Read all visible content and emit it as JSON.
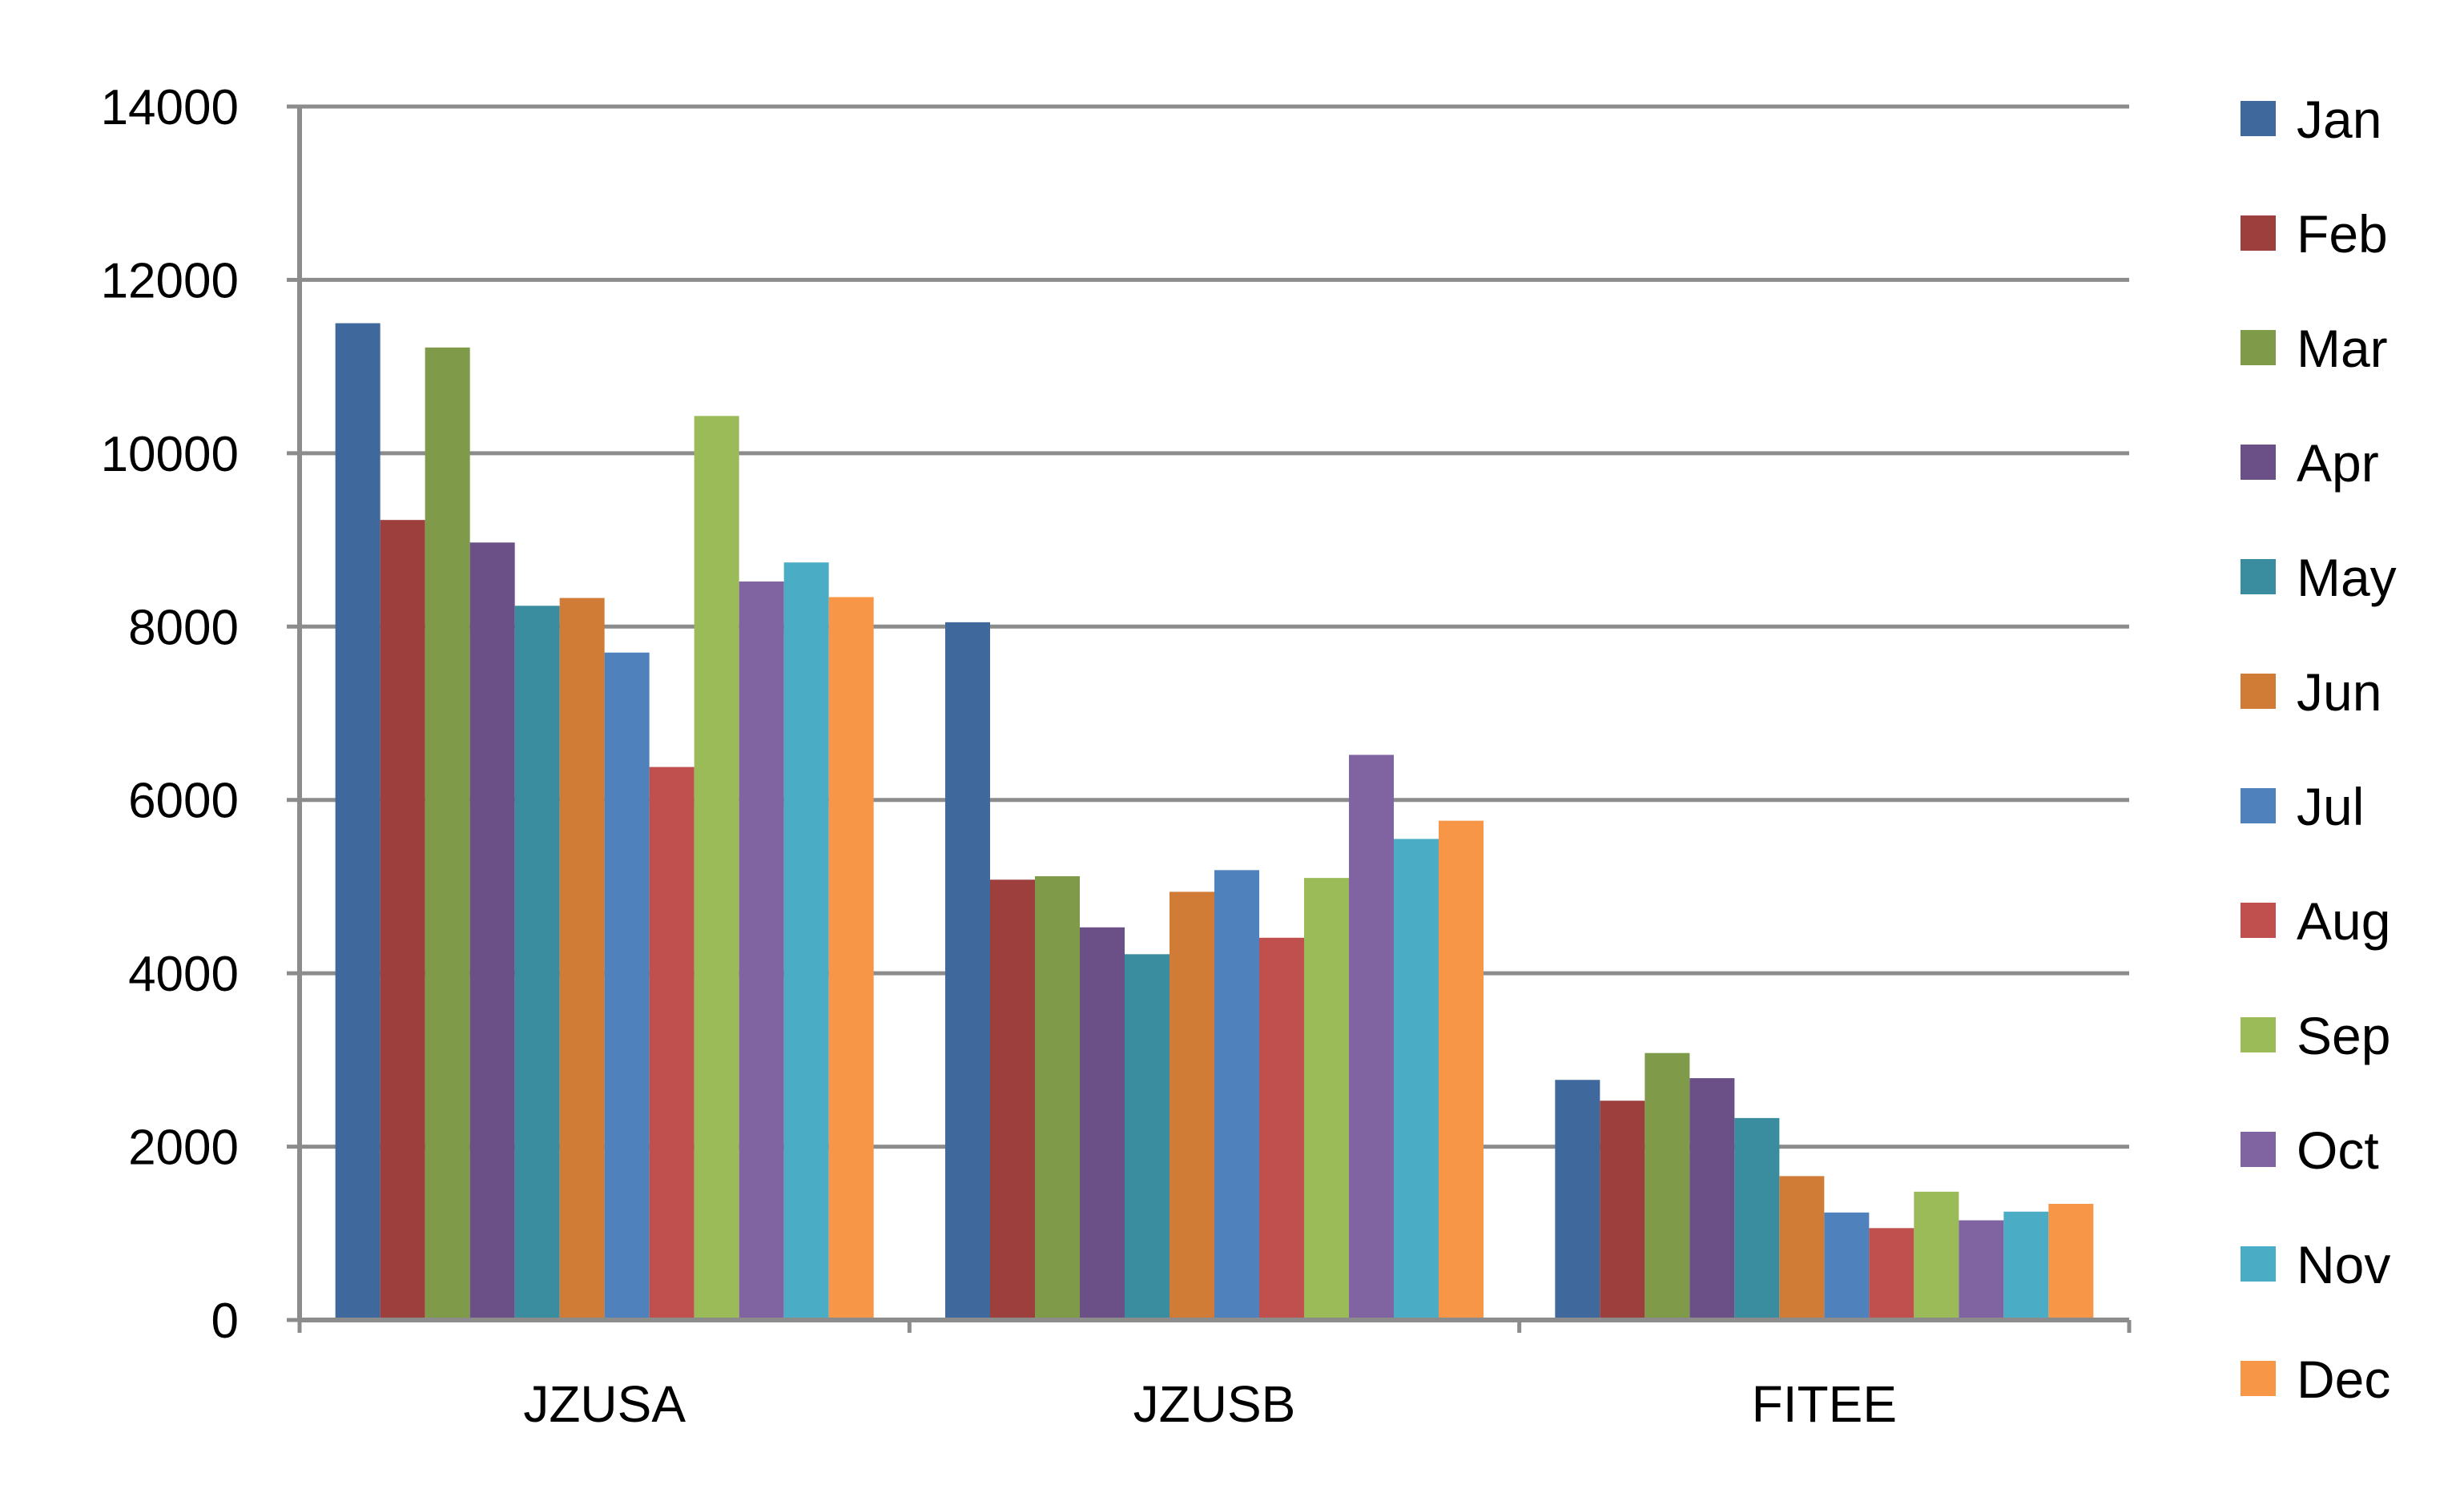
{
  "chart_data": {
    "type": "bar",
    "title": "",
    "xlabel": "",
    "ylabel": "",
    "categories": [
      "JZUSA",
      "JZUSB",
      "FITEE"
    ],
    "ylim": [
      0,
      14000
    ],
    "yticks": [
      0,
      2000,
      4000,
      6000,
      8000,
      10000,
      12000,
      14000
    ],
    "grid": true,
    "legend_position": "right",
    "series": [
      {
        "name": "Jan",
        "color": "#3F689D",
        "values": [
          11500,
          8050,
          2770
        ]
      },
      {
        "name": "Feb",
        "color": "#9D403D",
        "values": [
          9230,
          5080,
          2530
        ]
      },
      {
        "name": "Mar",
        "color": "#7F9A48",
        "values": [
          11220,
          5120,
          3080
        ]
      },
      {
        "name": "Apr",
        "color": "#6A5087",
        "values": [
          8970,
          4530,
          2790
        ]
      },
      {
        "name": "May",
        "color": "#3A8D9F",
        "values": [
          8240,
          4220,
          2330
        ]
      },
      {
        "name": "Jun",
        "color": "#D07C37",
        "values": [
          8330,
          4940,
          1660
        ]
      },
      {
        "name": "Jul",
        "color": "#4F81BD",
        "values": [
          7700,
          5190,
          1240
        ]
      },
      {
        "name": "Aug",
        "color": "#C0504D",
        "values": [
          6380,
          4410,
          1060
        ]
      },
      {
        "name": "Sep",
        "color": "#9BBB59",
        "values": [
          10430,
          5100,
          1480
        ]
      },
      {
        "name": "Oct",
        "color": "#8064A2",
        "values": [
          8520,
          6520,
          1150
        ]
      },
      {
        "name": "Nov",
        "color": "#4BACC6",
        "values": [
          8740,
          5550,
          1250
        ]
      },
      {
        "name": "Dec",
        "color": "#F79646",
        "values": [
          8340,
          5760,
          1340
        ]
      }
    ]
  }
}
